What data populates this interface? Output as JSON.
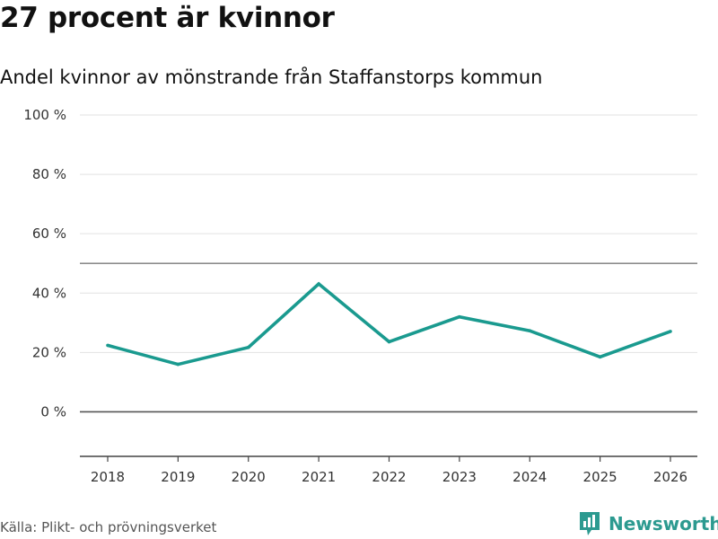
{
  "title": "27 procent är kvinnor",
  "subtitle": "Andel kvinnor av mönstrande från Staffanstorps kommun",
  "source": "Källa: Plikt- och prövningsverket",
  "brand": {
    "name": "Newsworthy",
    "icon": "newsworthy-logo-icon",
    "color": "#2c9a90"
  },
  "chart_data": {
    "type": "line",
    "title": "27 procent är kvinnor",
    "subtitle": "Andel kvinnor av mönstrande från Staffanstorps kommun",
    "xlabel": "",
    "ylabel": "",
    "categories": [
      "2018",
      "2019",
      "2020",
      "2021",
      "2022",
      "2023",
      "2024",
      "2025",
      "2026"
    ],
    "series": [
      {
        "name": "Andel kvinnor",
        "values": [
          22.4,
          16.0,
          21.7,
          43.1,
          23.6,
          32.0,
          27.3,
          18.5,
          27.1
        ],
        "color": "#1a9a8f"
      }
    ],
    "ylim": [
      -15,
      100
    ],
    "yticks": [
      0,
      20,
      40,
      60,
      80,
      100
    ],
    "ytick_labels": [
      "0 %",
      "20 %",
      "40 %",
      "60 %",
      "80 %",
      "100 %"
    ],
    "reference_line": 50,
    "grid": true
  }
}
